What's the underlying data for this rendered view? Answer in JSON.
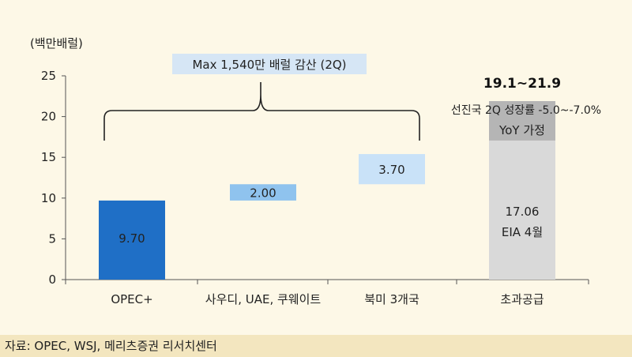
{
  "chart_data": {
    "type": "bar",
    "subtype": "waterfall",
    "ylabel": "(백만배럴)",
    "ylim": [
      0,
      25
    ],
    "yticks": [
      0,
      5,
      10,
      15,
      20,
      25
    ],
    "grid": false,
    "categories": [
      "OPEC+",
      "사우디, UAE, 쿠웨이트",
      "북미 3개국",
      "초과공급"
    ],
    "bars": [
      {
        "category": "OPEC+",
        "base": 0,
        "value": 9.7,
        "label": "9.70",
        "color": "#1f6fc6"
      },
      {
        "category": "사우디, UAE, 쿠웨이트",
        "base": 9.7,
        "value": 2.0,
        "label": "2.00",
        "color": "#8fc3ee"
      },
      {
        "category": "북미 3개국",
        "base": 11.7,
        "value": 3.7,
        "label": "3.70",
        "color": "#c9e2f8"
      },
      {
        "category": "초과공급",
        "base": 0,
        "value": 17.06,
        "label": "17.06",
        "sublabel": "EIA 4월",
        "color": "#d9d9d9"
      },
      {
        "category": "초과공급",
        "base": 17.06,
        "value": 4.84,
        "label": "YoY 가정",
        "color": "#b5b5b5"
      }
    ],
    "annotations": {
      "brace_label": "Max 1,540만 배럴 감산 (2Q)",
      "range_label": "19.1~21.9",
      "range_note": "선진국 2Q 성장률 -5.0~-7.0%"
    }
  },
  "source": "자료: OPEC, WSJ, 메리츠증권 리서치센터"
}
